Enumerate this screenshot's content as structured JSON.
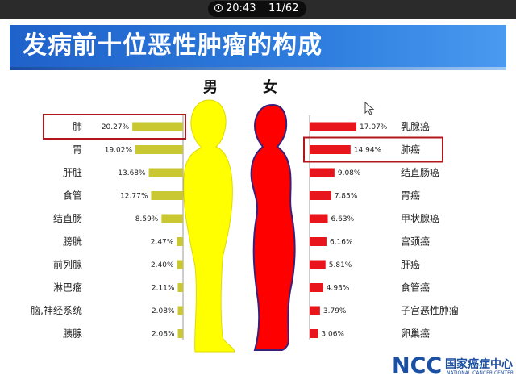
{
  "status_bar": {
    "time": "20:43",
    "page": "11/62"
  },
  "title": "发病前十位恶性肿瘤的构成",
  "male_label": "男",
  "female_label": "女",
  "colors": {
    "male_bar": "#c9c832",
    "female_bar": "#e8161c",
    "male_silhouette": "#ffff00",
    "female_silhouette": "#ff0000",
    "highlight_box": "#b1171c",
    "title_bg": "#2a70d6"
  },
  "chart_data": [
    {
      "type": "bar",
      "orientation": "horizontal",
      "direction": "right-to-left",
      "categories": [
        "肺",
        "胃",
        "肝脏",
        "食管",
        "结直肠",
        "膀胱",
        "前列腺",
        "淋巴瘤",
        "脑,神经系统",
        "胰腺"
      ],
      "values": [
        20.27,
        19.02,
        13.68,
        12.77,
        8.59,
        2.47,
        2.4,
        2.11,
        2.08,
        2.08
      ],
      "value_labels": [
        "20.27%",
        "19.02%",
        "13.68%",
        "12.77%",
        "8.59%",
        "2.47%",
        "2.40%",
        "2.11%",
        "2.08%",
        "2.08%"
      ],
      "highlight": "肺"
    },
    {
      "type": "bar",
      "orientation": "horizontal",
      "categories": [
        "乳腺癌",
        "肺癌",
        "结直肠癌",
        "胃癌",
        "甲状腺癌",
        "宫颈癌",
        "肝癌",
        "食管癌",
        "子宫恶性肿瘤",
        "卵巢癌"
      ],
      "values": [
        17.07,
        14.94,
        9.08,
        7.85,
        6.63,
        6.16,
        5.81,
        4.93,
        3.79,
        3.06
      ],
      "value_labels": [
        "17.07%",
        "14.94%",
        "9.08%",
        "7.85%",
        "6.63%",
        "6.16%",
        "5.81%",
        "4.93%",
        "3.79%",
        "3.06%"
      ],
      "highlight": "肺癌"
    }
  ],
  "logo": {
    "mark": "NCC",
    "name_cn": "国家癌症中心",
    "name_en": "NATIONAL CANCER CENTER"
  }
}
